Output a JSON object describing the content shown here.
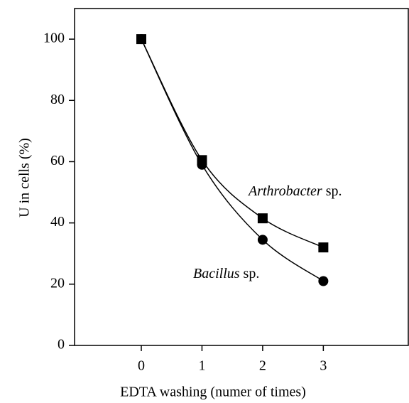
{
  "chart_data": {
    "type": "line",
    "xlabel": "EDTA washing (numer of times)",
    "ylabel": "U in cells (%)",
    "x": [
      0,
      1,
      2,
      3
    ],
    "series": [
      {
        "name": "Arthrobacter sp.",
        "color": "#000000",
        "marker": "square",
        "values": [
          100,
          60.5,
          41.5,
          32
        ]
      },
      {
        "name": "Bacillus sp.",
        "color": "#000000",
        "marker": "circle",
        "values": [
          100,
          59,
          34.5,
          21
        ]
      }
    ],
    "xlim": [
      -1.1,
      4.4
    ],
    "xticks": [
      0,
      1,
      2,
      3
    ],
    "ylim": [
      0,
      110
    ],
    "yticks": [
      0,
      20,
      40,
      60,
      80,
      100
    ],
    "grid": false
  }
}
